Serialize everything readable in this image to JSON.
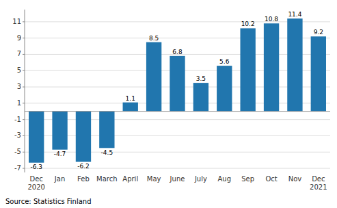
{
  "chart_data": {
    "type": "bar",
    "categories": [
      "Dec\n2020",
      "Jan",
      "Feb",
      "March",
      "April",
      "May",
      "June",
      "July",
      "Aug",
      "Sep",
      "Oct",
      "Nov",
      "Dec\n2021"
    ],
    "values": [
      -6.3,
      -4.7,
      -6.2,
      -4.5,
      1.1,
      8.5,
      6.8,
      3.5,
      5.6,
      10.2,
      10.8,
      11.4,
      9.2
    ],
    "color": "#2176ae",
    "ylim": [
      -7.5,
      12.5
    ],
    "yticks": [
      -7,
      -5,
      -3,
      -1,
      1,
      3,
      5,
      7,
      9,
      11
    ],
    "grid": true,
    "data_labels": true,
    "annotations": [
      "Source: Statistics Finland"
    ]
  }
}
